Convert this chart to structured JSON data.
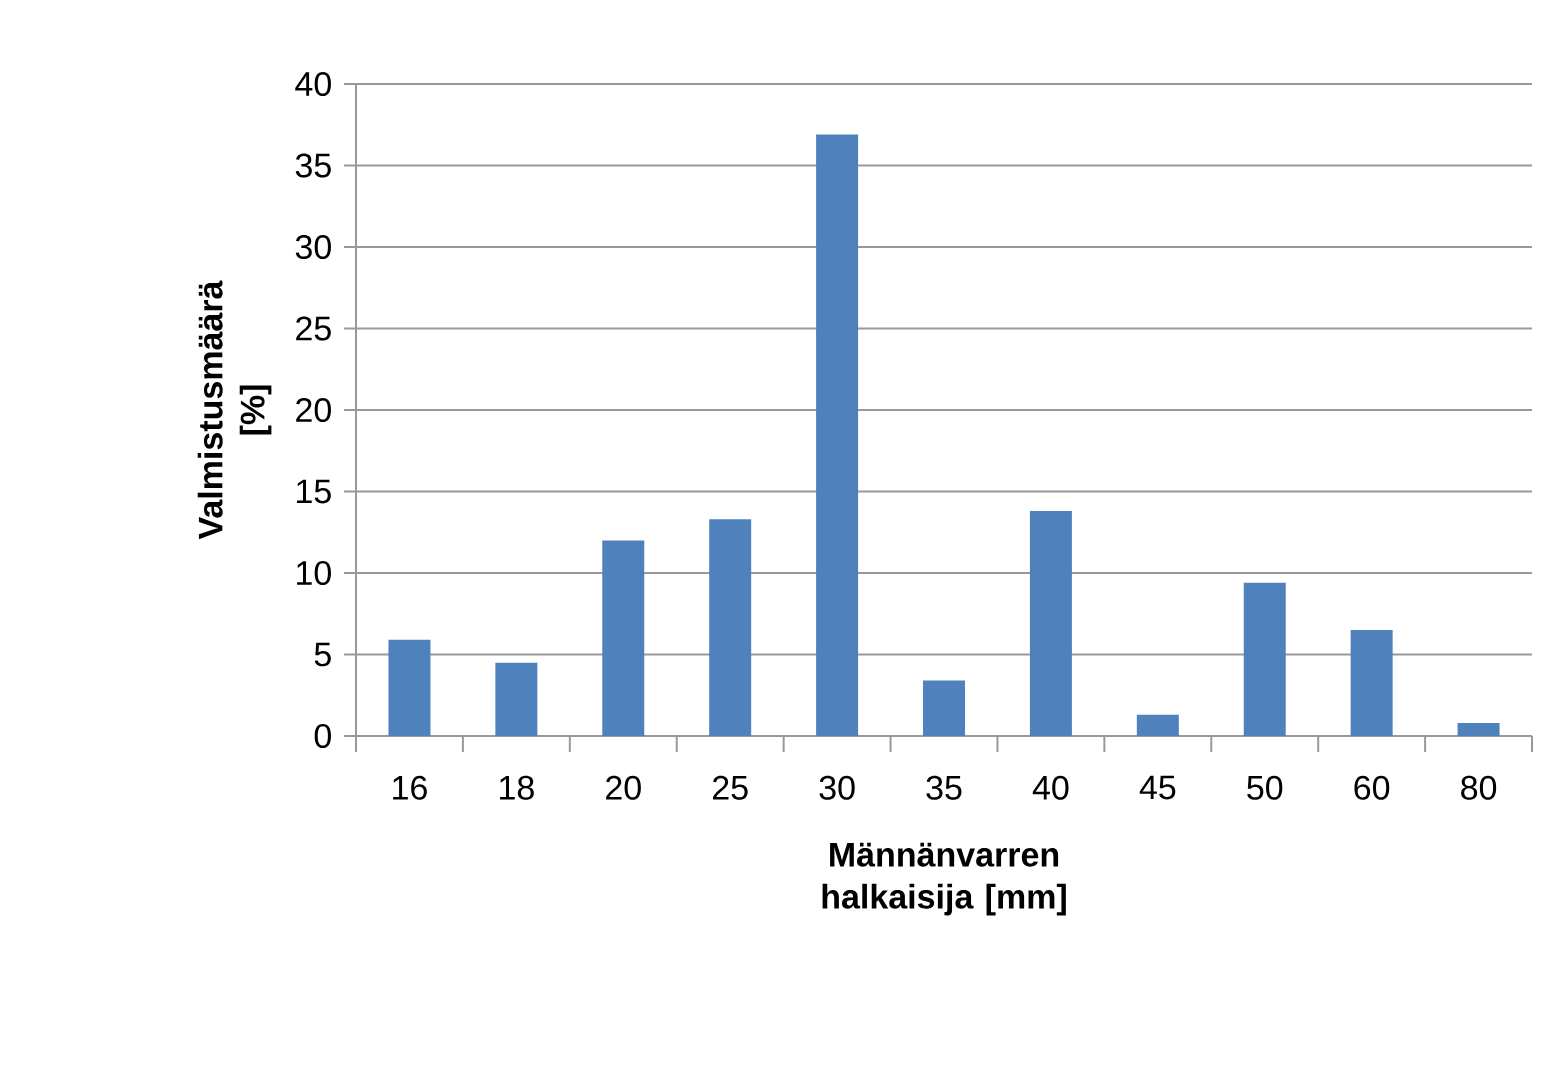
{
  "chart_data": {
    "type": "bar",
    "xlabel": "Männänvarren halkaisija [mm]",
    "ylabel": "Valmistusmäärä [%]",
    "categories": [
      "16",
      "18",
      "20",
      "25",
      "30",
      "35",
      "40",
      "45",
      "50",
      "60",
      "80"
    ],
    "values": [
      5.9,
      4.5,
      12.0,
      13.3,
      36.9,
      3.4,
      13.8,
      1.3,
      9.4,
      6.5,
      0.8
    ],
    "color": "#4f81bd",
    "ylim": [
      0,
      40
    ],
    "yticks": [
      0,
      5,
      10,
      15,
      20,
      25,
      30,
      35,
      40
    ],
    "grid": "y"
  }
}
